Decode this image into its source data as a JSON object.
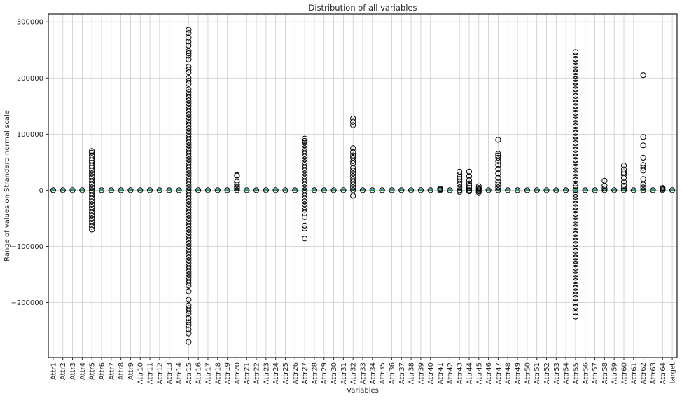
{
  "chart_data": {
    "type": "box",
    "title": "Distribution of all variables",
    "xlabel": "Variables",
    "ylabel": "Range of values on Strandard normal scale",
    "ylim": [
      -298000,
      314000
    ],
    "yticks": [
      -200000,
      -100000,
      0,
      100000,
      200000,
      300000
    ],
    "ytick_labels": [
      "−200000",
      "−100000",
      "0",
      "100000",
      "200000",
      "300000"
    ],
    "grid": true,
    "box_color": "#1f77b4",
    "median_color": "#2ca02c",
    "categories": [
      "Attr1",
      "Attr2",
      "Attr3",
      "Attr4",
      "Attr5",
      "Attr6",
      "Attr7",
      "Attr8",
      "Attr9",
      "Attr10",
      "Attr11",
      "Attr12",
      "Attr13",
      "Attr14",
      "Attr15",
      "Attr16",
      "Attr17",
      "Attr18",
      "Attr19",
      "Attr20",
      "Attr21",
      "Attr22",
      "Attr23",
      "Attr24",
      "Attr25",
      "Attr26",
      "Attr27",
      "Attr28",
      "Attr29",
      "Attr30",
      "Attr31",
      "Attr32",
      "Attr33",
      "Attr34",
      "Attr35",
      "Attr36",
      "Attr37",
      "Attr38",
      "Attr39",
      "Attr40",
      "Attr41",
      "Attr42",
      "Attr43",
      "Attr44",
      "Attr45",
      "Attr46",
      "Attr47",
      "Attr48",
      "Attr49",
      "Attr50",
      "Attr51",
      "Attr52",
      "Attr53",
      "Attr54",
      "Attr55",
      "Attr56",
      "Attr57",
      "Attr58",
      "Attr59",
      "Attr60",
      "Attr61",
      "Attr62",
      "Attr63",
      "Attr64",
      "target"
    ],
    "outliers": {
      "Attr5": [
        70000,
        67000,
        62000,
        57000,
        53000,
        49000,
        44000,
        40000,
        35000,
        30000,
        25000,
        20000,
        15000,
        10000,
        5000,
        -5000,
        -10000,
        -15000,
        -20000,
        -25000,
        -30000,
        -35000,
        -40000,
        -45000,
        -50000,
        -55000,
        -60000,
        -65000,
        -70000
      ],
      "Attr15": [
        286000,
        280000,
        272000,
        265000,
        258000,
        248000,
        244000,
        240000,
        233000,
        220000,
        215000,
        210000,
        200000,
        195000,
        190000,
        180000,
        175000,
        170000,
        165000,
        160000,
        155000,
        150000,
        145000,
        140000,
        135000,
        130000,
        125000,
        120000,
        115000,
        110000,
        105000,
        100000,
        95000,
        90000,
        85000,
        80000,
        75000,
        70000,
        65000,
        60000,
        55000,
        50000,
        45000,
        40000,
        35000,
        30000,
        25000,
        20000,
        15000,
        10000,
        5000,
        -5000,
        -10000,
        -15000,
        -20000,
        -25000,
        -30000,
        -35000,
        -40000,
        -45000,
        -50000,
        -55000,
        -60000,
        -65000,
        -70000,
        -75000,
        -80000,
        -85000,
        -90000,
        -95000,
        -100000,
        -105000,
        -110000,
        -115000,
        -120000,
        -125000,
        -130000,
        -135000,
        -140000,
        -145000,
        -150000,
        -155000,
        -160000,
        -165000,
        -170000,
        -180000,
        -195000,
        -205000,
        -210000,
        -215000,
        -220000,
        -228000,
        -235000,
        -240000,
        -248000,
        -255000,
        -270000
      ],
      "Attr20": [
        27000,
        26000,
        15000,
        10000,
        7000,
        5000,
        3000
      ],
      "Attr27": [
        92000,
        88000,
        85000,
        80000,
        75000,
        70000,
        65000,
        60000,
        55000,
        50000,
        45000,
        40000,
        35000,
        30000,
        25000,
        20000,
        15000,
        10000,
        5000,
        -5000,
        -10000,
        -15000,
        -20000,
        -25000,
        -30000,
        -35000,
        -40000,
        -48000,
        -63000,
        -68000,
        -86000
      ],
      "Attr32": [
        128000,
        122000,
        116000,
        75000,
        68000,
        62000,
        58000,
        52000,
        48000,
        40000,
        35000,
        30000,
        25000,
        20000,
        15000,
        10000,
        5000,
        -10000
      ],
      "Attr41": [
        3000,
        1500
      ],
      "Attr43": [
        33000,
        28000,
        24000,
        20000,
        15000,
        10000,
        5000,
        -3000
      ],
      "Attr44": [
        33000,
        25000,
        18000,
        12000,
        8000,
        4000,
        -2000
      ],
      "Attr45": [
        7000,
        4000,
        2000,
        -2000,
        -4000
      ],
      "Attr47": [
        90000,
        65000,
        62000,
        58000,
        52000,
        45000,
        38000,
        30000,
        22000,
        15000,
        10000,
        5000
      ],
      "Attr55": [
        246000,
        240000,
        234000,
        228000,
        222000,
        216000,
        210000,
        204000,
        198000,
        192000,
        186000,
        180000,
        174000,
        168000,
        162000,
        156000,
        150000,
        144000,
        138000,
        132000,
        126000,
        120000,
        114000,
        108000,
        102000,
        96000,
        90000,
        84000,
        78000,
        72000,
        66000,
        60000,
        54000,
        48000,
        42000,
        36000,
        30000,
        24000,
        18000,
        12000,
        8000,
        -8000,
        -12000,
        -18000,
        -24000,
        -30000,
        -36000,
        -42000,
        -48000,
        -54000,
        -60000,
        -66000,
        -72000,
        -78000,
        -84000,
        -90000,
        -96000,
        -102000,
        -108000,
        -114000,
        -120000,
        -126000,
        -132000,
        -138000,
        -144000,
        -150000,
        -156000,
        -162000,
        -168000,
        -174000,
        -180000,
        -186000,
        -192000,
        -200000,
        -208000,
        -218000,
        -225000
      ],
      "Attr58": [
        17000,
        8000,
        3000
      ],
      "Attr60": [
        44000,
        37000,
        32000,
        28000,
        22000,
        15000,
        8000,
        3000
      ],
      "Attr62": [
        205000,
        95000,
        80000,
        58000,
        45000,
        40000,
        35000,
        20000,
        10000,
        5000
      ],
      "Attr64": [
        4000,
        2000
      ]
    },
    "boxes": {
      "Attr55": {
        "q1": -2000,
        "median": 1000,
        "q3": 4000
      }
    }
  }
}
